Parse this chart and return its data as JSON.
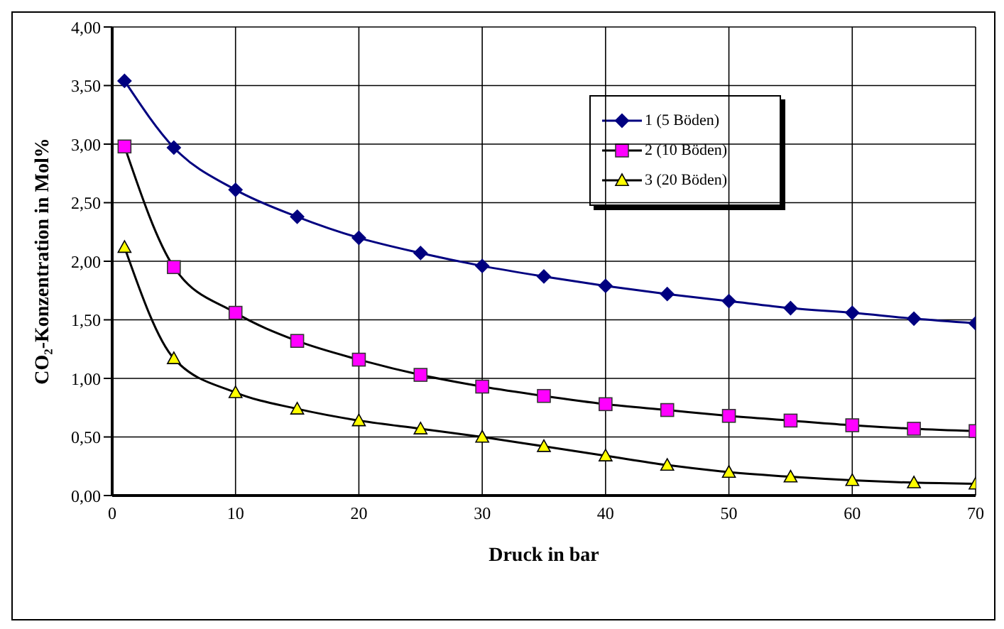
{
  "chart_data": {
    "type": "line",
    "xlabel": "Druck in bar",
    "ylabel": "CO₂-Konzentration in Mol%",
    "x": [
      1,
      5,
      10,
      15,
      20,
      25,
      30,
      35,
      40,
      45,
      50,
      55,
      60,
      65,
      70
    ],
    "series": [
      {
        "name": "1 (5 Böden)",
        "color": "#000080",
        "marker": "diamond",
        "values": [
          3.54,
          2.97,
          2.61,
          2.38,
          2.2,
          2.07,
          1.96,
          1.87,
          1.79,
          1.72,
          1.66,
          1.6,
          1.56,
          1.51,
          1.47
        ]
      },
      {
        "name": "2 (10 Böden)",
        "color": "#ff00ff",
        "marker": "square",
        "values": [
          2.98,
          1.95,
          1.56,
          1.32,
          1.16,
          1.03,
          0.93,
          0.85,
          0.78,
          0.73,
          0.68,
          0.64,
          0.6,
          0.57,
          0.55
        ]
      },
      {
        "name": "3 (20 Böden)",
        "color": "#ffff00",
        "marker": "triangle",
        "values": [
          2.12,
          1.17,
          0.88,
          0.74,
          0.64,
          0.57,
          0.5,
          0.42,
          0.34,
          0.26,
          0.2,
          0.16,
          0.13,
          0.11,
          0.1
        ]
      }
    ],
    "xlim": [
      0,
      70
    ],
    "xticks": [
      0,
      10,
      20,
      30,
      40,
      50,
      60,
      70
    ],
    "ylim": [
      0,
      4
    ],
    "yticks": [
      {
        "value": 0,
        "label": "0,00"
      },
      {
        "value": 0.5,
        "label": "0,50"
      },
      {
        "value": 1,
        "label": "1,00"
      },
      {
        "value": 1.5,
        "label": "1,50"
      },
      {
        "value": 2,
        "label": "2,00"
      },
      {
        "value": 2.5,
        "label": "2,50"
      },
      {
        "value": 3,
        "label": "3,00"
      },
      {
        "value": 3.5,
        "label": "3,50"
      },
      {
        "value": 4,
        "label": "4,00"
      }
    ],
    "grid": true,
    "legend": "top right"
  }
}
